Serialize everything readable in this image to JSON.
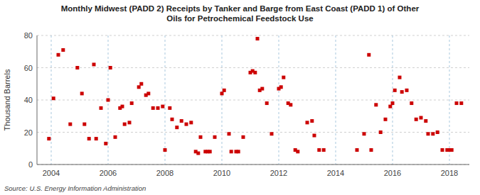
{
  "chart_data": {
    "type": "scatter",
    "title": "Monthly Midwest (PADD 2) Receipts by Tanker and Barge from East Coast (PADD 1) of Other\nOils for Petrochemical Feedstock Use",
    "y_label": "Thousand Barrels",
    "annotations": [
      "Source: U.S. Energy Information Administration"
    ],
    "xlim": [
      2003.5,
      2018.7
    ],
    "ylim": [
      0,
      80
    ],
    "xticks": [
      2004,
      2006,
      2008,
      2010,
      2012,
      2014,
      2016,
      2018
    ],
    "yticks": [
      0,
      20,
      40,
      60,
      80
    ],
    "grid": true,
    "color": "#cc0000",
    "marker": "square",
    "x": [
      2003.92,
      2004.08,
      2004.25,
      2004.42,
      2004.67,
      2004.92,
      2005.08,
      2005.17,
      2005.33,
      2005.5,
      2005.58,
      2005.75,
      2005.92,
      2006.0,
      2006.08,
      2006.25,
      2006.42,
      2006.5,
      2006.58,
      2006.75,
      2006.83,
      2007.08,
      2007.17,
      2007.33,
      2007.42,
      2007.58,
      2007.75,
      2007.92,
      2008.0,
      2008.17,
      2008.25,
      2008.42,
      2008.58,
      2008.75,
      2008.92,
      2009.08,
      2009.17,
      2009.25,
      2009.42,
      2009.5,
      2009.58,
      2009.75,
      2010.0,
      2010.08,
      2010.25,
      2010.33,
      2010.5,
      2010.58,
      2010.75,
      2011.0,
      2011.08,
      2011.17,
      2011.25,
      2011.33,
      2011.42,
      2011.58,
      2011.75,
      2012.0,
      2012.08,
      2012.17,
      2012.33,
      2012.42,
      2012.58,
      2012.67,
      2013.0,
      2013.17,
      2013.25,
      2013.42,
      2013.58,
      2014.75,
      2015.0,
      2015.17,
      2015.25,
      2015.42,
      2015.58,
      2015.75,
      2015.92,
      2016.0,
      2016.08,
      2016.25,
      2016.33,
      2016.5,
      2016.67,
      2016.83,
      2017.0,
      2017.17,
      2017.25,
      2017.42,
      2017.58,
      2017.75,
      2017.92,
      2018.0,
      2018.08,
      2018.25,
      2018.42
    ],
    "values": [
      16,
      41,
      68,
      71,
      25,
      60,
      44,
      25,
      16,
      62,
      16,
      35,
      13,
      40,
      60,
      17,
      35,
      36,
      25,
      26,
      38,
      48,
      50,
      43,
      44,
      35,
      35,
      36,
      9,
      35,
      28,
      23,
      27,
      25,
      26,
      8,
      7,
      17,
      8,
      8,
      8,
      17,
      44,
      46,
      19,
      8,
      8,
      8,
      17,
      57,
      58,
      57,
      78,
      46,
      47,
      38,
      19,
      47,
      48,
      54,
      38,
      37,
      9,
      8,
      26,
      27,
      18,
      9,
      9,
      9,
      19,
      68,
      9,
      37,
      20,
      28,
      36,
      38,
      46,
      54,
      45,
      46,
      38,
      28,
      29,
      27,
      19,
      19,
      20,
      9,
      9,
      9,
      9,
      38,
      38
    ]
  }
}
